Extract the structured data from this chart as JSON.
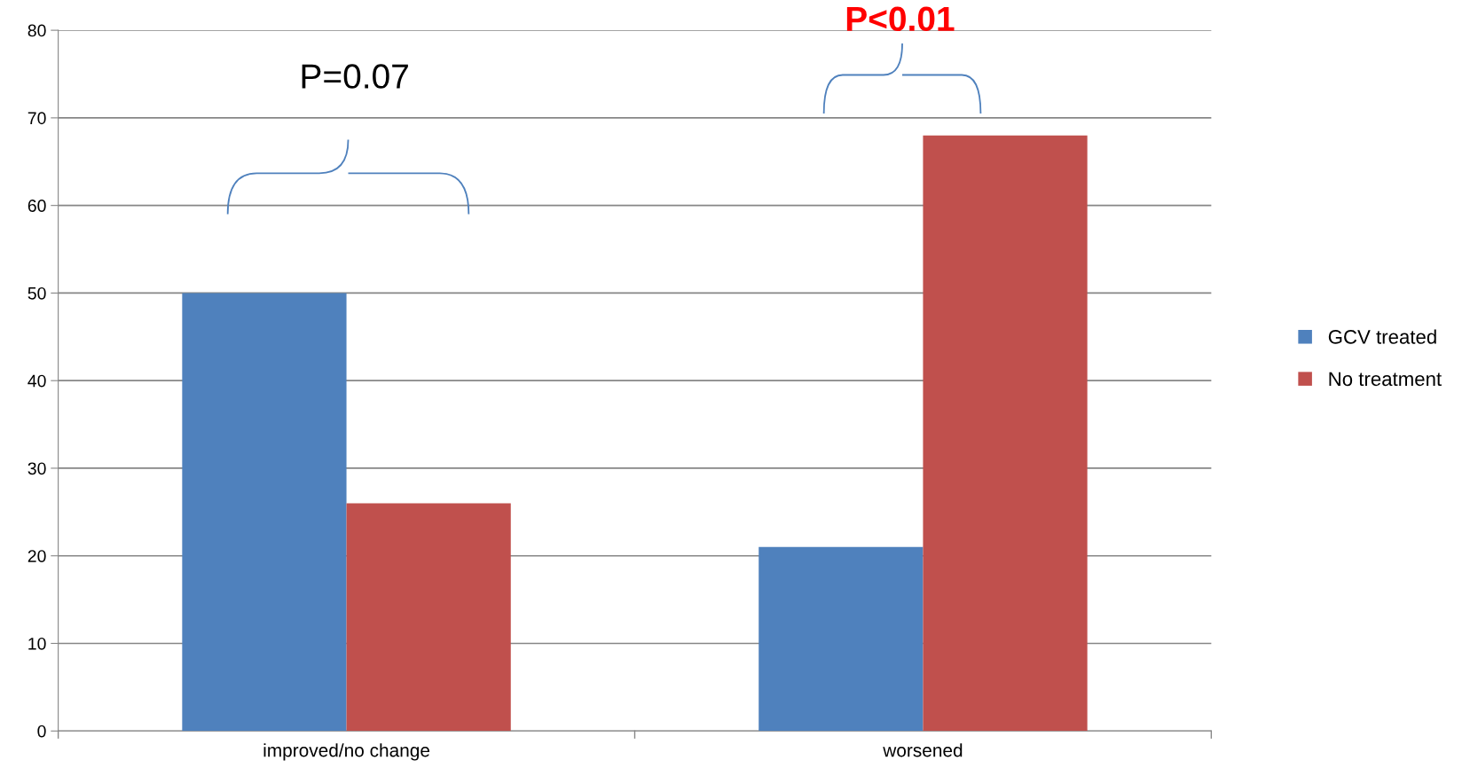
{
  "chart_data": {
    "type": "bar",
    "categories": [
      "improved/no change",
      "worsened"
    ],
    "series": [
      {
        "name": "GCV treated",
        "color": "#4f81bd",
        "values": [
          50,
          21
        ]
      },
      {
        "name": "No treatment",
        "color": "#c0504d",
        "values": [
          26,
          68
        ]
      }
    ],
    "ylim": [
      0,
      80
    ],
    "yticks": [
      0,
      10,
      20,
      30,
      40,
      50,
      60,
      70,
      80
    ],
    "grid": "y",
    "legend": "right",
    "annotations": [
      "P=0.07",
      "P<0.01"
    ]
  }
}
